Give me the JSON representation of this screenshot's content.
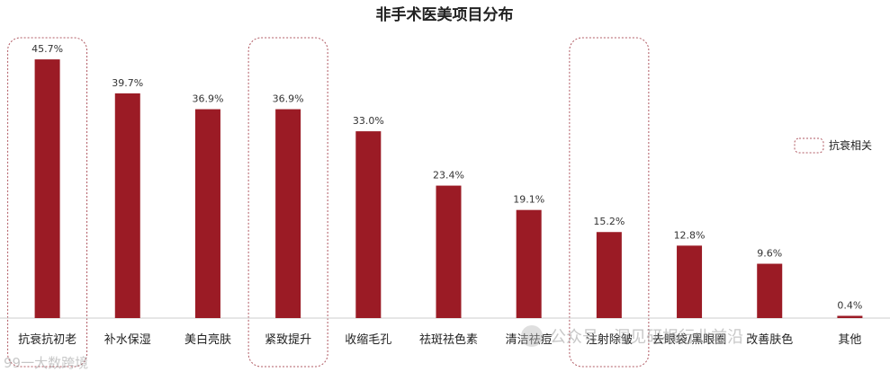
{
  "chart_data": {
    "type": "bar",
    "title": "非手术医美项目分布",
    "categories": [
      "抗衰抗初老",
      "补水保湿",
      "美白亮肤",
      "紧致提升",
      "收缩毛孔",
      "祛斑祛色素",
      "清洁祛痘",
      "注射除皱",
      "去眼袋/黑眼圈",
      "改善肤色",
      "其他"
    ],
    "values": [
      45.7,
      39.7,
      36.9,
      36.9,
      33.0,
      23.4,
      19.1,
      15.2,
      12.8,
      9.6,
      0.4
    ],
    "value_labels": [
      "45.7%",
      "39.7%",
      "36.9%",
      "36.9%",
      "33.0%",
      "23.4%",
      "19.1%",
      "15.2%",
      "12.8%",
      "9.6%",
      "0.4%"
    ],
    "highlighted": [
      "抗衰抗初老",
      "紧致提升",
      "注射除皱"
    ],
    "ylim": [
      0,
      50
    ],
    "grid": false,
    "legend": {
      "label": "抗衰相关",
      "position": "right"
    },
    "colors": {
      "bar": "#9b1b25",
      "highlight_border": "#b05a63",
      "baseline": "#cccccc"
    }
  },
  "watermarks": {
    "left": "99一大数跨境",
    "right": "公众号 · 洞见研报行业前沿"
  }
}
